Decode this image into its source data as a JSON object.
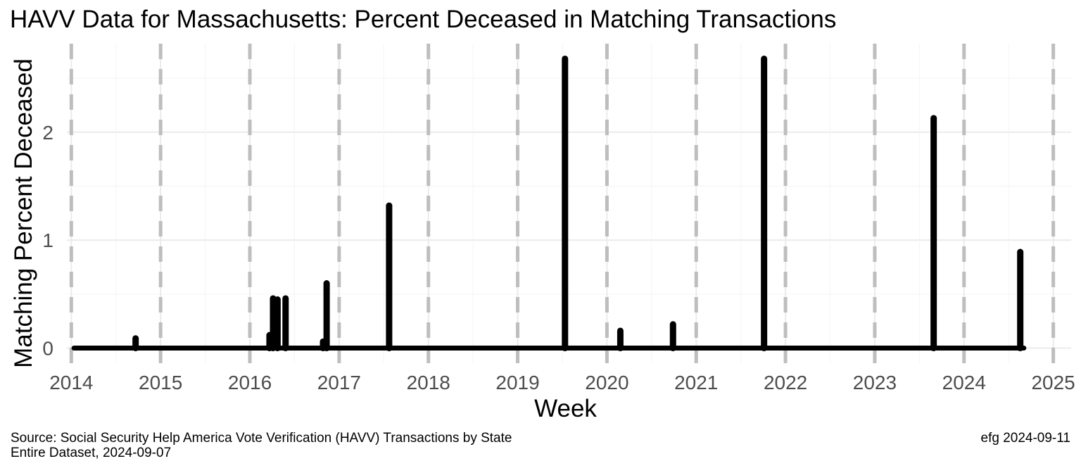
{
  "title": "HAVV Data for Massachusetts:  Percent Deceased in Matching Transactions",
  "caption_line1": "Source:  Social Security Help America Vote Verification (HAVV) Transactions by State",
  "caption_line2": "Entire Dataset, 2024-09-07",
  "credit": "efg 2024-09-11",
  "chart_data": {
    "type": "line",
    "title": "HAVV Data for Massachusetts:  Percent Deceased in Matching Transactions",
    "xlabel": "Week",
    "ylabel": "Matching Percent Deceased",
    "xlim": [
      2013.95,
      2025.2
    ],
    "ylim": [
      -0.14,
      2.82
    ],
    "x_ticks": [
      "2014",
      "2015",
      "2016",
      "2017",
      "2018",
      "2019",
      "2020",
      "2021",
      "2022",
      "2023",
      "2024",
      "2025"
    ],
    "y_ticks": [
      "0",
      "1",
      "2"
    ],
    "grid": true,
    "year_marker_lines": "dashed gray at each January 1",
    "line_color": "#000000",
    "spikes": [
      {
        "x": 2014.72,
        "y": 0.09
      },
      {
        "x": 2016.22,
        "y": 0.12
      },
      {
        "x": 2016.26,
        "y": 0.46
      },
      {
        "x": 2016.31,
        "y": 0.45
      },
      {
        "x": 2016.4,
        "y": 0.46
      },
      {
        "x": 2016.82,
        "y": 0.06
      },
      {
        "x": 2016.86,
        "y": 0.6
      },
      {
        "x": 2017.56,
        "y": 1.32
      },
      {
        "x": 2019.53,
        "y": 2.68
      },
      {
        "x": 2020.15,
        "y": 0.16
      },
      {
        "x": 2020.74,
        "y": 0.22
      },
      {
        "x": 2021.76,
        "y": 2.68
      },
      {
        "x": 2023.66,
        "y": 2.13
      },
      {
        "x": 2024.63,
        "y": 0.89
      }
    ],
    "baseline": {
      "x_start": 2014.03,
      "x_end": 2024.67,
      "y": 0
    }
  }
}
